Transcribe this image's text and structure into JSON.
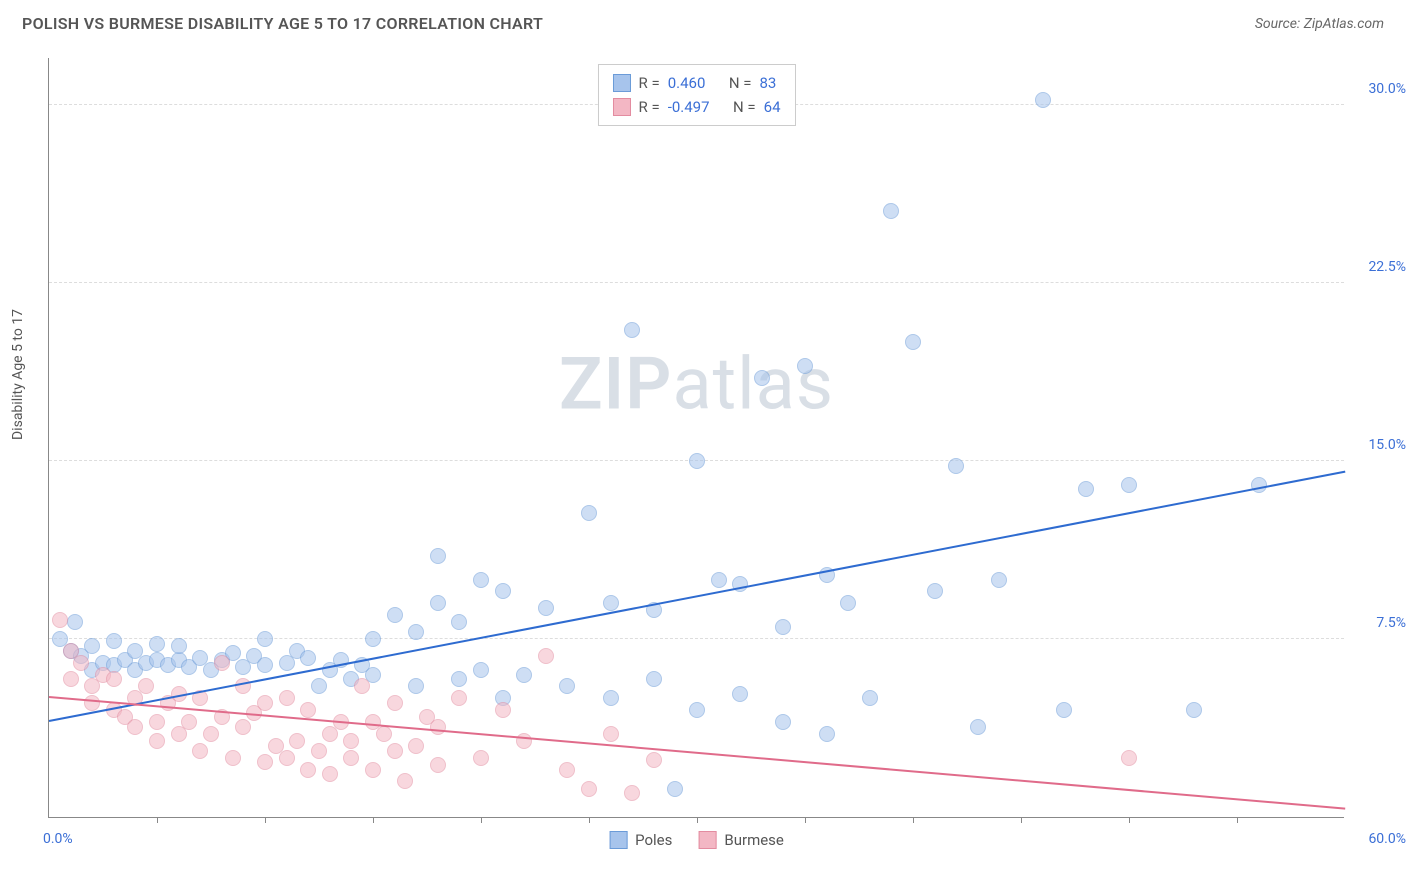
{
  "title": "POLISH VS BURMESE DISABILITY AGE 5 TO 17 CORRELATION CHART",
  "source": "Source: ZipAtlas.com",
  "ylabel": "Disability Age 5 to 17",
  "watermark_bold": "ZIP",
  "watermark_light": "atlas",
  "chart": {
    "type": "scatter",
    "xlim": [
      0,
      60
    ],
    "ylim": [
      0,
      32
    ],
    "x_start_label": "0.0%",
    "x_end_label": "60.0%",
    "y_ticks": [
      7.5,
      15.0,
      22.5,
      30.0
    ],
    "y_tick_labels": [
      "7.5%",
      "15.0%",
      "22.5%",
      "30.0%"
    ],
    "x_tick_step": 5,
    "grid_color": "#dddddd",
    "background_color": "#ffffff",
    "axis_color": "#888888",
    "tick_label_color": "#3b6fd6",
    "point_radius": 8,
    "point_opacity": 0.55,
    "line_width": 2
  },
  "series": [
    {
      "name": "Poles",
      "color_fill": "#a7c4ec",
      "color_stroke": "#6b9bd8",
      "line_color": "#2e6bd0",
      "R": "0.460",
      "N": "83",
      "trend": {
        "x1": 0,
        "y1": 4.0,
        "x2": 60,
        "y2": 14.5
      },
      "points": [
        [
          0.5,
          7.5
        ],
        [
          1,
          7.0
        ],
        [
          1.2,
          8.2
        ],
        [
          1.5,
          6.8
        ],
        [
          2,
          7.2
        ],
        [
          2,
          6.2
        ],
        [
          2.5,
          6.5
        ],
        [
          3,
          6.4
        ],
        [
          3,
          7.4
        ],
        [
          3.5,
          6.6
        ],
        [
          4,
          6.2
        ],
        [
          4,
          7.0
        ],
        [
          4.5,
          6.5
        ],
        [
          5,
          6.6
        ],
        [
          5,
          7.3
        ],
        [
          5.5,
          6.4
        ],
        [
          6,
          6.6
        ],
        [
          6,
          7.2
        ],
        [
          6.5,
          6.3
        ],
        [
          7,
          6.7
        ],
        [
          7.5,
          6.2
        ],
        [
          8,
          6.6
        ],
        [
          8.5,
          6.9
        ],
        [
          9,
          6.3
        ],
        [
          9.5,
          6.8
        ],
        [
          10,
          6.4
        ],
        [
          10,
          7.5
        ],
        [
          11,
          6.5
        ],
        [
          11.5,
          7.0
        ],
        [
          12,
          6.7
        ],
        [
          12.5,
          5.5
        ],
        [
          13,
          6.2
        ],
        [
          13.5,
          6.6
        ],
        [
          14,
          5.8
        ],
        [
          14.5,
          6.4
        ],
        [
          15,
          6.0
        ],
        [
          15,
          7.5
        ],
        [
          16,
          8.5
        ],
        [
          17,
          5.5
        ],
        [
          17,
          7.8
        ],
        [
          18,
          9.0
        ],
        [
          18,
          11.0
        ],
        [
          19,
          5.8
        ],
        [
          19,
          8.2
        ],
        [
          20,
          6.2
        ],
        [
          20,
          10.0
        ],
        [
          21,
          5.0
        ],
        [
          21,
          9.5
        ],
        [
          22,
          6.0
        ],
        [
          23,
          8.8
        ],
        [
          24,
          5.5
        ],
        [
          25,
          12.8
        ],
        [
          26,
          5.0
        ],
        [
          26,
          9.0
        ],
        [
          27,
          20.5
        ],
        [
          28,
          5.8
        ],
        [
          28,
          8.7
        ],
        [
          29,
          1.2
        ],
        [
          30,
          4.5
        ],
        [
          30,
          15.0
        ],
        [
          31,
          10.0
        ],
        [
          32,
          5.2
        ],
        [
          32,
          9.8
        ],
        [
          33,
          18.5
        ],
        [
          34,
          4.0
        ],
        [
          34,
          8.0
        ],
        [
          35,
          19.0
        ],
        [
          36,
          3.5
        ],
        [
          36,
          10.2
        ],
        [
          37,
          9.0
        ],
        [
          38,
          5.0
        ],
        [
          39,
          25.5
        ],
        [
          40,
          20.0
        ],
        [
          41,
          9.5
        ],
        [
          42,
          14.8
        ],
        [
          43,
          3.8
        ],
        [
          44,
          10.0
        ],
        [
          46,
          30.2
        ],
        [
          47,
          4.5
        ],
        [
          48,
          13.8
        ],
        [
          50,
          14.0
        ],
        [
          53,
          4.5
        ],
        [
          56,
          14.0
        ]
      ]
    },
    {
      "name": "Burmese",
      "color_fill": "#f3b7c4",
      "color_stroke": "#e38ca0",
      "line_color": "#e06b8a",
      "R": "-0.497",
      "N": "64",
      "trend": {
        "x1": 0,
        "y1": 5.0,
        "x2": 60,
        "y2": 0.3
      },
      "points": [
        [
          0.5,
          8.3
        ],
        [
          1,
          7.0
        ],
        [
          1,
          5.8
        ],
        [
          1.5,
          6.5
        ],
        [
          2,
          5.5
        ],
        [
          2,
          4.8
        ],
        [
          2.5,
          6.0
        ],
        [
          3,
          4.5
        ],
        [
          3,
          5.8
        ],
        [
          3.5,
          4.2
        ],
        [
          4,
          5.0
        ],
        [
          4,
          3.8
        ],
        [
          4.5,
          5.5
        ],
        [
          5,
          4.0
        ],
        [
          5,
          3.2
        ],
        [
          5.5,
          4.8
        ],
        [
          6,
          3.5
        ],
        [
          6,
          5.2
        ],
        [
          6.5,
          4.0
        ],
        [
          7,
          2.8
        ],
        [
          7,
          5.0
        ],
        [
          7.5,
          3.5
        ],
        [
          8,
          4.2
        ],
        [
          8,
          6.5
        ],
        [
          8.5,
          2.5
        ],
        [
          9,
          3.8
        ],
        [
          9,
          5.5
        ],
        [
          9.5,
          4.4
        ],
        [
          10,
          2.3
        ],
        [
          10,
          4.8
        ],
        [
          10.5,
          3.0
        ],
        [
          11,
          2.5
        ],
        [
          11,
          5.0
        ],
        [
          11.5,
          3.2
        ],
        [
          12,
          2.0
        ],
        [
          12,
          4.5
        ],
        [
          12.5,
          2.8
        ],
        [
          13,
          3.5
        ],
        [
          13,
          1.8
        ],
        [
          13.5,
          4.0
        ],
        [
          14,
          2.5
        ],
        [
          14,
          3.2
        ],
        [
          14.5,
          5.5
        ],
        [
          15,
          2.0
        ],
        [
          15,
          4.0
        ],
        [
          15.5,
          3.5
        ],
        [
          16,
          2.8
        ],
        [
          16,
          4.8
        ],
        [
          16.5,
          1.5
        ],
        [
          17,
          3.0
        ],
        [
          17.5,
          4.2
        ],
        [
          18,
          2.2
        ],
        [
          18,
          3.8
        ],
        [
          19,
          5.0
        ],
        [
          20,
          2.5
        ],
        [
          21,
          4.5
        ],
        [
          22,
          3.2
        ],
        [
          23,
          6.8
        ],
        [
          24,
          2.0
        ],
        [
          25,
          1.2
        ],
        [
          26,
          3.5
        ],
        [
          27,
          1.0
        ],
        [
          28,
          2.4
        ],
        [
          50,
          2.5
        ]
      ]
    }
  ],
  "legend_top": {
    "r_prefix": "R =",
    "n_prefix": "N ="
  },
  "legend_bottom": [
    "Poles",
    "Burmese"
  ]
}
